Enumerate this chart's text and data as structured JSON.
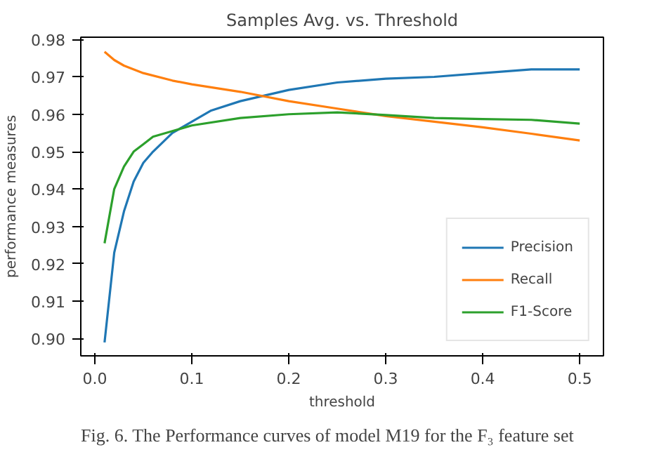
{
  "chart_data": {
    "type": "line",
    "title": "Samples Avg. vs. Threshold",
    "xlabel": "threshold",
    "ylabel": "performance measures",
    "annotations": [
      "Fig. 6.        The Performance curves of model M19 for the F₃ feature set"
    ],
    "xlim": [
      -0.0145,
      0.5245
    ],
    "ylim": [
      0.8954,
      0.9806
    ],
    "xticks": [
      {
        "value": 0.0,
        "label": "0.0"
      },
      0.1,
      0.2,
      0.3,
      0.4,
      0.5
    ],
    "yticks": [
      {
        "value": 0.9,
        "label": "0.90"
      },
      0.91,
      0.92,
      0.93,
      0.94,
      0.95,
      0.96,
      0.97,
      0.98
    ],
    "grid": false,
    "legend": "bottom right",
    "line_style": "solid",
    "marker": "none",
    "series": [
      {
        "name": "Precision",
        "color": "#1f77b4",
        "x": [
          0.01,
          0.02,
          0.03,
          0.04,
          0.05,
          0.06,
          0.08,
          0.1,
          0.12,
          0.15,
          0.2,
          0.25,
          0.3,
          0.35,
          0.4,
          0.45,
          0.5
        ],
        "values": [
          0.899,
          0.923,
          0.934,
          0.942,
          0.947,
          0.95,
          0.955,
          0.958,
          0.961,
          0.9635,
          0.9665,
          0.9685,
          0.9695,
          0.97,
          0.971,
          0.972,
          0.972
        ]
      },
      {
        "name": "Recall",
        "color": "#ff7f0e",
        "x": [
          0.01,
          0.02,
          0.03,
          0.05,
          0.08,
          0.1,
          0.15,
          0.2,
          0.25,
          0.3,
          0.35,
          0.4,
          0.45,
          0.5
        ],
        "values": [
          0.9767,
          0.9745,
          0.973,
          0.971,
          0.969,
          0.968,
          0.966,
          0.9635,
          0.9615,
          0.9595,
          0.958,
          0.9565,
          0.9548,
          0.953
        ]
      },
      {
        "name": "F1-Score",
        "color": "#2ca02c",
        "x": [
          0.01,
          0.02,
          0.03,
          0.04,
          0.05,
          0.06,
          0.08,
          0.1,
          0.15,
          0.2,
          0.25,
          0.3,
          0.35,
          0.4,
          0.45,
          0.5
        ],
        "values": [
          0.9255,
          0.94,
          0.946,
          0.95,
          0.952,
          0.954,
          0.9555,
          0.957,
          0.959,
          0.96,
          0.9605,
          0.9598,
          0.959,
          0.9587,
          0.9585,
          0.9575
        ]
      }
    ]
  }
}
